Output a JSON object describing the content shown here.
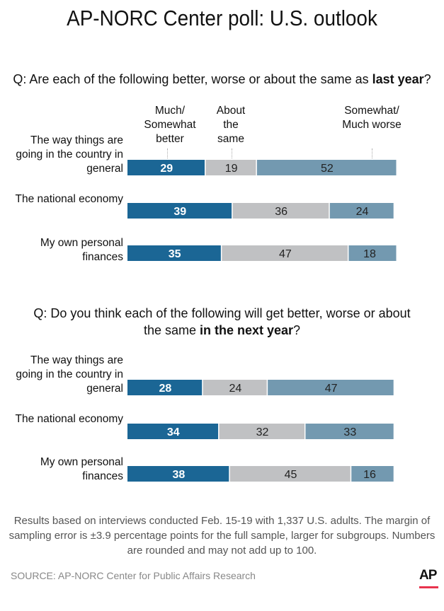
{
  "title": "AP-NORC Center poll: U.S. outlook",
  "colors": {
    "better": "#1b6695",
    "same": "#c0c1c3",
    "worse": "#7399b0"
  },
  "chart_data": [
    {
      "type": "bar",
      "stacked": true,
      "orientation": "horizontal",
      "question_prefix": "Q: Are each of the following better, worse or about the same as ",
      "question_bold": "last year",
      "question_suffix": "?",
      "legend": [
        "Much/ Somewhat better",
        "About the same",
        "Somewhat/ Much worse"
      ],
      "categories": [
        "The way things are going in the country in general",
        "The national economy",
        "My own personal finances"
      ],
      "series": [
        {
          "name": "Much/ Somewhat better",
          "values": [
            29,
            39,
            35
          ]
        },
        {
          "name": "About the same",
          "values": [
            19,
            36,
            47
          ]
        },
        {
          "name": "Somewhat/ Much worse",
          "values": [
            52,
            24,
            18
          ]
        }
      ]
    },
    {
      "type": "bar",
      "stacked": true,
      "orientation": "horizontal",
      "question_prefix": "Q: Do you think each of the following will get better, worse or about the same ",
      "question_bold": "in the next year",
      "question_suffix": "?",
      "categories": [
        "The way things are going in the country in general",
        "The national economy",
        "My own personal finances"
      ],
      "series": [
        {
          "name": "Much/ Somewhat better",
          "values": [
            28,
            34,
            38
          ]
        },
        {
          "name": "About the same",
          "values": [
            24,
            32,
            45
          ]
        },
        {
          "name": "Somewhat/ Much worse",
          "values": [
            47,
            33,
            16
          ]
        }
      ]
    }
  ],
  "note": "Results based on interviews conducted Feb. 15-19 with 1,337 U.S. adults. The margin of sampling error is ±3.9 percentage points for the full sample, larger for subgroups. Numbers are rounded and may not add up to 100.",
  "source": "SOURCE: AP-NORC Center for Public Affairs Research",
  "logo": "AP"
}
